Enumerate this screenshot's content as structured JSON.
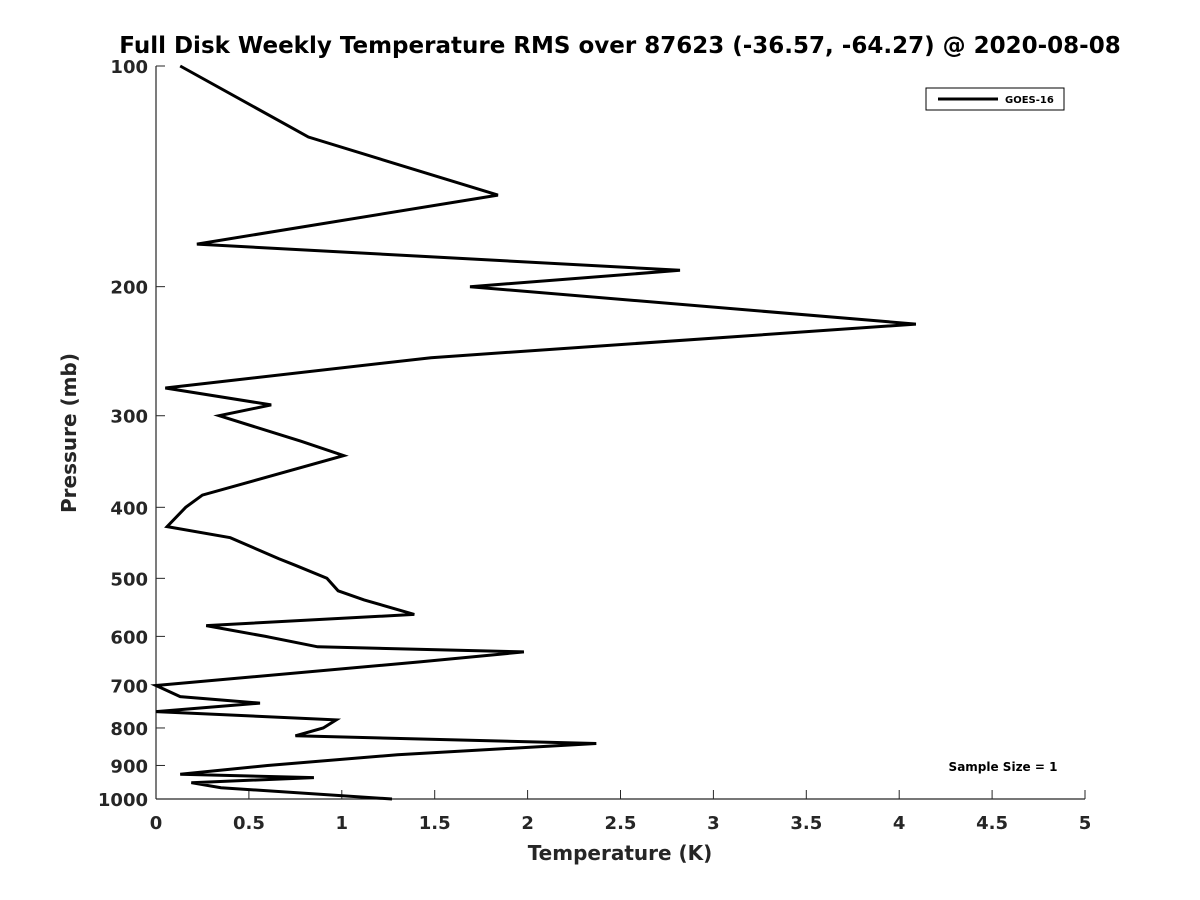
{
  "chart_data": {
    "type": "line",
    "title": "Full Disk Weekly Temperature RMS over 87623 (-36.57, -64.27) @ 2020-08-08",
    "xlabel": "Temperature (K)",
    "ylabel": "Pressure (mb)",
    "xlim": [
      0,
      5
    ],
    "ylim": [
      100,
      1000
    ],
    "y_scale": "log",
    "y_reversed": true,
    "xticks": [
      0,
      0.5,
      1,
      1.5,
      2,
      2.5,
      3,
      3.5,
      4,
      4.5,
      5
    ],
    "xtick_labels": [
      "0",
      "0.5",
      "1",
      "1.5",
      "2",
      "2.5",
      "3",
      "3.5",
      "4",
      "4.5",
      "5"
    ],
    "yticks": [
      100,
      200,
      300,
      400,
      500,
      600,
      700,
      800,
      900,
      1000
    ],
    "ytick_labels": [
      "100",
      "200",
      "300",
      "400",
      "500",
      "600",
      "700",
      "800",
      "900",
      "1000"
    ],
    "grid": false,
    "legend_position": "top-right",
    "series": [
      {
        "name": "GOES-16",
        "color": "#000000",
        "points": [
          [
            0.13,
            100
          ],
          [
            0.82,
            125
          ],
          [
            1.84,
            150
          ],
          [
            0.22,
            175
          ],
          [
            2.82,
            190
          ],
          [
            1.69,
            200
          ],
          [
            4.09,
            225
          ],
          [
            1.48,
            250
          ],
          [
            0.05,
            275
          ],
          [
            0.62,
            290
          ],
          [
            0.34,
            300
          ],
          [
            0.78,
            325
          ],
          [
            1.01,
            340
          ],
          [
            0.25,
            385
          ],
          [
            0.16,
            400
          ],
          [
            0.06,
            425
          ],
          [
            0.4,
            440
          ],
          [
            0.66,
            470
          ],
          [
            0.75,
            480
          ],
          [
            0.92,
            500
          ],
          [
            0.98,
            520
          ],
          [
            1.12,
            535
          ],
          [
            1.39,
            560
          ],
          [
            0.27,
            580
          ],
          [
            0.59,
            600
          ],
          [
            0.87,
            620
          ],
          [
            1.98,
            630
          ],
          [
            1.42,
            650
          ],
          [
            0.0,
            700
          ],
          [
            0.13,
            725
          ],
          [
            0.56,
            740
          ],
          [
            0.0,
            760
          ],
          [
            0.97,
            780
          ],
          [
            0.9,
            800
          ],
          [
            0.75,
            820
          ],
          [
            2.37,
            840
          ],
          [
            1.3,
            870
          ],
          [
            0.6,
            900
          ],
          [
            0.13,
            925
          ],
          [
            0.85,
            935
          ],
          [
            0.19,
            950
          ],
          [
            0.35,
            965
          ],
          [
            1.27,
            1000
          ]
        ]
      }
    ],
    "annotations": [
      "Sample Size = 1"
    ]
  }
}
